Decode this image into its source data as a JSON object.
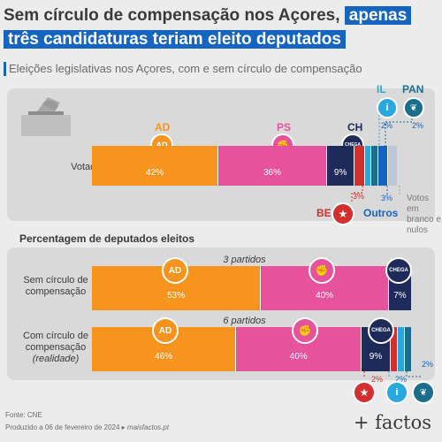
{
  "title": {
    "line1_plain": "Sem círculo de compensação nos Açores,",
    "line1_hl": "apenas",
    "line2_hl": "três candidaturas teriam eleito deputados"
  },
  "subtitle": "Eleições legislativas nos Açores, com e sem círculo de compensação",
  "section_title": "Percentagem de deputados eleitos",
  "colors": {
    "AD": "#f7941d",
    "PS": "#e6539c",
    "CH": "#1e2a5a",
    "BE": "#d32f2f",
    "IL": "#29a8e0",
    "PAN": "#1b6e8c",
    "Outros": "#1565c0",
    "Brancos": "#bfc7d4"
  },
  "chart_data": [
    {
      "type": "bar",
      "title": "Votação",
      "categories": [
        "AD",
        "PS",
        "CH",
        "BE",
        "IL",
        "PAN",
        "Outros",
        "Votos em branco e nulos"
      ],
      "values": [
        42,
        36,
        9,
        3,
        2,
        2,
        3,
        null
      ],
      "labels": [
        "42%",
        "36%",
        "9%",
        "3%",
        "2%",
        "2%",
        "3%",
        ""
      ]
    },
    {
      "type": "bar",
      "title": "Sem círculo de compensação",
      "categories": [
        "AD",
        "PS",
        "CH"
      ],
      "values": [
        53,
        40,
        7
      ],
      "labels": [
        "53%",
        "40%",
        "7%"
      ],
      "count_label": "3 partidos"
    },
    {
      "type": "bar",
      "title": "Com círculo de compensação (realidade)",
      "categories": [
        "AD",
        "PS",
        "CH",
        "BE",
        "IL",
        "PAN"
      ],
      "values": [
        46,
        40,
        9,
        2,
        2,
        2
      ],
      "labels": [
        "46%",
        "40%",
        "9%",
        "2%",
        "2%",
        "2%"
      ],
      "count_label": "6 partidos"
    }
  ],
  "party_names": {
    "AD": "AD",
    "PS": "PS",
    "CH": "CH",
    "IL": "IL",
    "PAN": "PAN",
    "BE": "BE",
    "Outros": "Outros"
  },
  "badge_text": {
    "AD": "AD",
    "CH": "CHEGA"
  },
  "row_labels": {
    "votacao": "Votação",
    "sem_1": "Sem círculo de",
    "sem_2": "compensação",
    "com_1": "Com círculo de",
    "com_2": "compensação",
    "com_3": "(realidade)"
  },
  "blank_label": [
    "Votos em",
    "branco e",
    "nulos"
  ],
  "annotations": {
    "il_vote": "2%",
    "pan_vote": "2%",
    "be_vote": "3%",
    "outros_vote": "3%",
    "be_seat": "2%",
    "il_seat": "2%",
    "pan_seat": "2%"
  },
  "footer": {
    "source": "Fonte: CNE",
    "produced": "Produzido a 06 de fevereiro de 2024 ▸",
    "site": "maisfactos.pt"
  },
  "brand": "+ factos"
}
